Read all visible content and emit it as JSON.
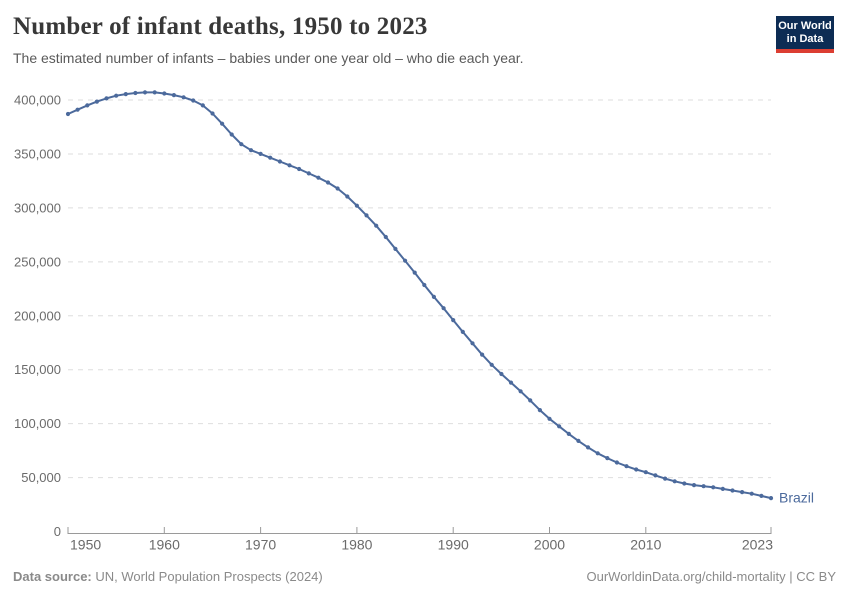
{
  "header": {
    "title": "Number of infant deaths, 1950 to 2023",
    "subtitle": "The estimated number of infants – babies under one year old – who die each year.",
    "logo_line1": "Our World",
    "logo_line2": "in Data"
  },
  "footer": {
    "source_label": "Data source:",
    "source_value": " UN, World Population Prospects (2024)",
    "credit": "OurWorldinData.org/child-mortality | CC BY"
  },
  "colors": {
    "line": "#4c6a9c",
    "grid": "#dedede",
    "axis": "#9a9a9a",
    "tick_label": "#6b6b6b",
    "logo_bg": "#0d2c54",
    "logo_red": "#dc3e32"
  },
  "chart_data": {
    "type": "line",
    "title": "Number of infant deaths, 1950 to 2023",
    "entity_label": "Brazil",
    "xlabel": "",
    "ylabel": "",
    "xlim": [
      1950,
      2023
    ],
    "ylim": [
      0,
      400000
    ],
    "grid": true,
    "legend_position": "end-of-line-label",
    "xticks": [
      1950,
      1960,
      1970,
      1980,
      1990,
      2000,
      2010,
      2023
    ],
    "yticks": [
      0,
      50000,
      100000,
      150000,
      200000,
      250000,
      300000,
      350000,
      400000
    ],
    "x": [
      1950,
      1951,
      1952,
      1953,
      1954,
      1955,
      1956,
      1957,
      1958,
      1959,
      1960,
      1961,
      1962,
      1963,
      1964,
      1965,
      1966,
      1967,
      1968,
      1969,
      1970,
      1971,
      1972,
      1973,
      1974,
      1975,
      1976,
      1977,
      1978,
      1979,
      1980,
      1981,
      1982,
      1983,
      1984,
      1985,
      1986,
      1987,
      1988,
      1989,
      1990,
      1991,
      1992,
      1993,
      1994,
      1995,
      1996,
      1997,
      1998,
      1999,
      2000,
      2001,
      2002,
      2003,
      2004,
      2005,
      2006,
      2007,
      2008,
      2009,
      2010,
      2011,
      2012,
      2013,
      2014,
      2015,
      2016,
      2017,
      2018,
      2019,
      2020,
      2021,
      2022,
      2023
    ],
    "series": [
      {
        "name": "Brazil",
        "values": [
          387000,
          391000,
          395000,
          398500,
          401500,
          404000,
          405500,
          406500,
          407000,
          407000,
          406000,
          404500,
          402500,
          399500,
          395000,
          387500,
          378000,
          368000,
          359000,
          353500,
          350000,
          346500,
          343000,
          339500,
          336000,
          332000,
          328000,
          323500,
          318000,
          310500,
          302000,
          293000,
          283500,
          273000,
          262000,
          251000,
          240000,
          228500,
          217500,
          207000,
          196000,
          185000,
          174500,
          164000,
          154500,
          146000,
          138000,
          130000,
          121500,
          112500,
          104500,
          97500,
          90500,
          84000,
          78000,
          72500,
          68000,
          64000,
          60500,
          57500,
          55000,
          52000,
          49000,
          46500,
          44500,
          43000,
          42000,
          41000,
          39500,
          38000,
          36500,
          35000,
          33000,
          31000
        ]
      }
    ]
  }
}
